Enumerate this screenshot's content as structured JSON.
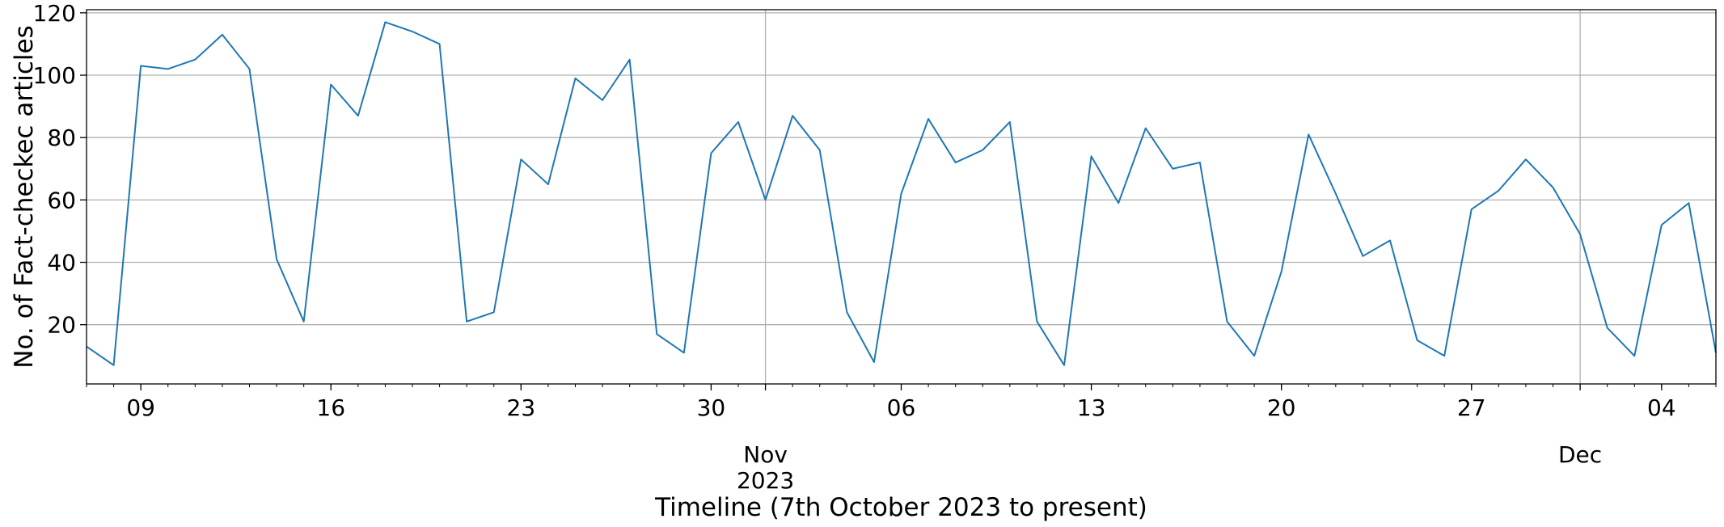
{
  "chart_data": {
    "type": "line",
    "title": "",
    "xlabel": "Timeline (7th October 2023 to present)",
    "ylabel": "No. of Fact-checkec articles",
    "x_start": "2023-10-07",
    "x_end": "2023-12-06",
    "ylim": [
      1,
      121
    ],
    "yticks": [
      20,
      40,
      60,
      80,
      100,
      120
    ],
    "grid": true,
    "xticks_major": [
      {
        "date": "2023-10-09",
        "label": "09"
      },
      {
        "date": "2023-10-16",
        "label": "16"
      },
      {
        "date": "2023-10-23",
        "label": "23"
      },
      {
        "date": "2023-10-30",
        "label": "30"
      },
      {
        "date": "2023-11-06",
        "label": "06"
      },
      {
        "date": "2023-11-13",
        "label": "13"
      },
      {
        "date": "2023-11-20",
        "label": "20"
      },
      {
        "date": "2023-11-27",
        "label": "27"
      },
      {
        "date": "2023-12-04",
        "label": "04"
      }
    ],
    "month_labels": [
      {
        "date": "2023-11-01",
        "label": "Nov",
        "year": "2023"
      },
      {
        "date": "2023-12-01",
        "label": "Dec",
        "year": ""
      }
    ],
    "series": [
      {
        "color": "#1f77b4",
        "x": [
          "2023-10-07",
          "2023-10-08",
          "2023-10-09",
          "2023-10-10",
          "2023-10-11",
          "2023-10-12",
          "2023-10-13",
          "2023-10-14",
          "2023-10-15",
          "2023-10-16",
          "2023-10-17",
          "2023-10-18",
          "2023-10-19",
          "2023-10-20",
          "2023-10-21",
          "2023-10-22",
          "2023-10-23",
          "2023-10-24",
          "2023-10-25",
          "2023-10-26",
          "2023-10-27",
          "2023-10-28",
          "2023-10-29",
          "2023-10-30",
          "2023-10-31",
          "2023-11-01",
          "2023-11-02",
          "2023-11-03",
          "2023-11-04",
          "2023-11-05",
          "2023-11-06",
          "2023-11-07",
          "2023-11-08",
          "2023-11-09",
          "2023-11-10",
          "2023-11-11",
          "2023-11-12",
          "2023-11-13",
          "2023-11-14",
          "2023-11-15",
          "2023-11-16",
          "2023-11-17",
          "2023-11-18",
          "2023-11-19",
          "2023-11-20",
          "2023-11-21",
          "2023-11-22",
          "2023-11-23",
          "2023-11-24",
          "2023-11-25",
          "2023-11-26",
          "2023-11-27",
          "2023-11-28",
          "2023-11-29",
          "2023-11-30",
          "2023-12-01",
          "2023-12-02",
          "2023-12-03",
          "2023-12-04",
          "2023-12-05",
          "2023-12-06"
        ],
        "y": [
          13,
          7,
          103,
          102,
          105,
          113,
          102,
          41,
          21,
          97,
          87,
          117,
          114,
          110,
          21,
          24,
          73,
          65,
          99,
          92,
          105,
          17,
          11,
          75,
          85,
          60,
          87,
          76,
          24,
          8,
          62,
          86,
          72,
          76,
          85,
          21,
          7,
          74,
          59,
          83,
          70,
          72,
          21,
          10,
          37,
          81,
          62,
          42,
          47,
          15,
          10,
          57,
          63,
          73,
          64,
          49,
          19,
          10,
          52,
          59,
          11
        ]
      }
    ]
  }
}
